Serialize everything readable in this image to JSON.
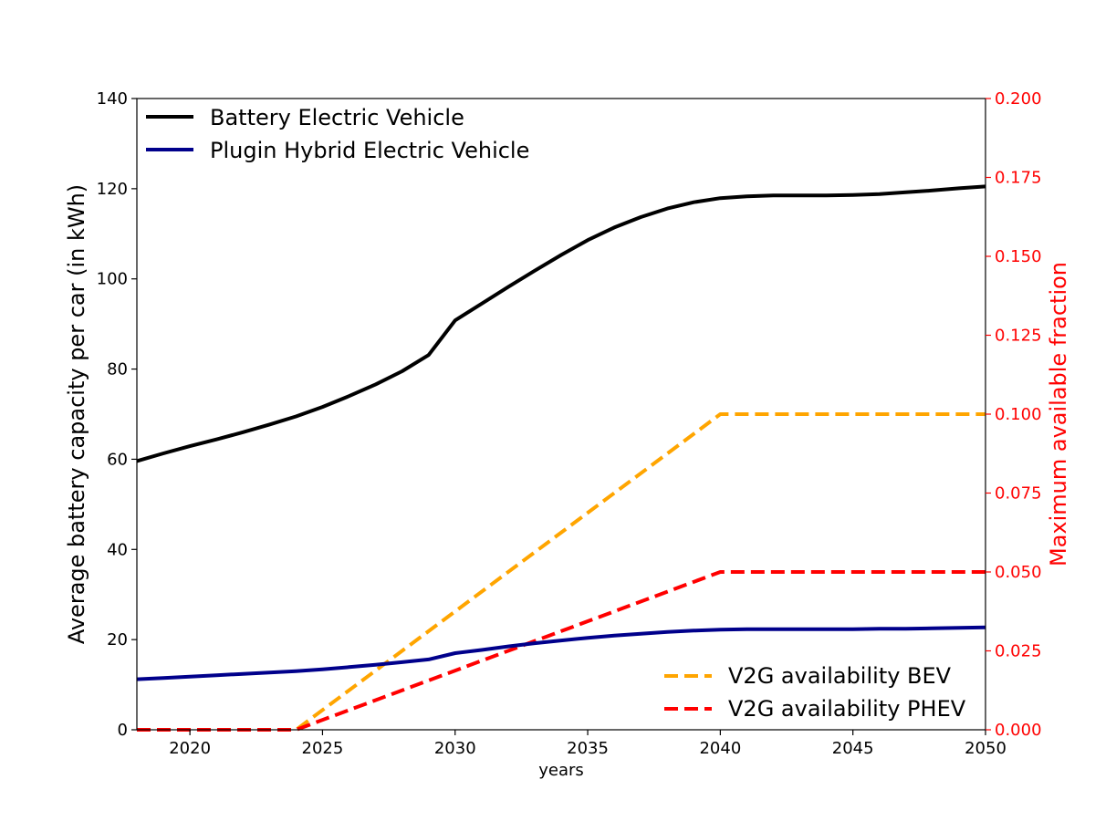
{
  "chart_data": {
    "type": "line",
    "xlabel": "years",
    "ylabel_left": "Average battery capacity per car (in kWh)",
    "ylabel_right": "Maximum available fraction",
    "xlim": [
      2018,
      2050
    ],
    "ylim_left": [
      0,
      140
    ],
    "ylim_right": [
      0,
      0.2
    ],
    "x_ticks": [
      "2020",
      "2025",
      "2030",
      "2035",
      "2040",
      "2045",
      "2050"
    ],
    "y_ticks_left": [
      "0",
      "20",
      "40",
      "60",
      "80",
      "100",
      "120",
      "140"
    ],
    "y_ticks_right": [
      "0.000",
      "0.025",
      "0.050",
      "0.075",
      "0.100",
      "0.125",
      "0.150",
      "0.175",
      "0.200"
    ],
    "grid": false,
    "left_legend_placement": "top-left",
    "right_legend_placement": "bottom-right",
    "colors": {
      "bev": "#000000",
      "phev": "#00008b",
      "v2g_bev": "#ffa500",
      "v2g_phev": "#ff0000",
      "right_axis": "#ff0000"
    },
    "series_left": [
      {
        "name": "Battery Electric Vehicle",
        "color": "#000000",
        "style": "solid",
        "x": [
          2018,
          2019,
          2020,
          2021,
          2022,
          2023,
          2024,
          2025,
          2026,
          2027,
          2028,
          2029,
          2030,
          2031,
          2032,
          2033,
          2034,
          2035,
          2036,
          2037,
          2038,
          2039,
          2040,
          2041,
          2042,
          2043,
          2044,
          2045,
          2046,
          2047,
          2048,
          2049,
          2050
        ],
        "y": [
          59.6,
          61.3,
          62.9,
          64.4,
          66.0,
          67.7,
          69.5,
          71.6,
          74.0,
          76.6,
          79.5,
          83.1,
          90.8,
          94.5,
          98.2,
          101.8,
          105.3,
          108.6,
          111.4,
          113.7,
          115.6,
          117.0,
          117.9,
          118.3,
          118.5,
          118.5,
          118.5,
          118.6,
          118.8,
          119.2,
          119.6,
          120.1,
          120.5
        ]
      },
      {
        "name": "Plugin Hybrid Electric Vehicle",
        "color": "#00008b",
        "style": "solid",
        "x": [
          2018,
          2019,
          2020,
          2021,
          2022,
          2023,
          2024,
          2025,
          2026,
          2027,
          2028,
          2029,
          2030,
          2031,
          2032,
          2033,
          2034,
          2035,
          2036,
          2037,
          2038,
          2039,
          2040,
          2041,
          2042,
          2043,
          2044,
          2045,
          2046,
          2047,
          2048,
          2049,
          2050
        ],
        "y": [
          11.2,
          11.5,
          11.8,
          12.1,
          12.4,
          12.7,
          13.0,
          13.4,
          13.9,
          14.4,
          15.0,
          15.6,
          17.0,
          17.7,
          18.5,
          19.2,
          19.8,
          20.4,
          20.9,
          21.3,
          21.7,
          22.0,
          22.2,
          22.3,
          22.3,
          22.3,
          22.3,
          22.3,
          22.4,
          22.4,
          22.5,
          22.6,
          22.7
        ]
      }
    ],
    "series_right": [
      {
        "name": "V2G availability BEV",
        "color": "#ffa500",
        "style": "dashed",
        "x": [
          2018,
          2024,
          2040,
          2050
        ],
        "y": [
          0.0,
          0.0,
          0.1,
          0.1
        ]
      },
      {
        "name": "V2G availability PHEV",
        "color": "#ff0000",
        "style": "dashed",
        "x": [
          2018,
          2024,
          2040,
          2050
        ],
        "y": [
          0.0,
          0.0,
          0.05,
          0.05
        ]
      }
    ]
  }
}
